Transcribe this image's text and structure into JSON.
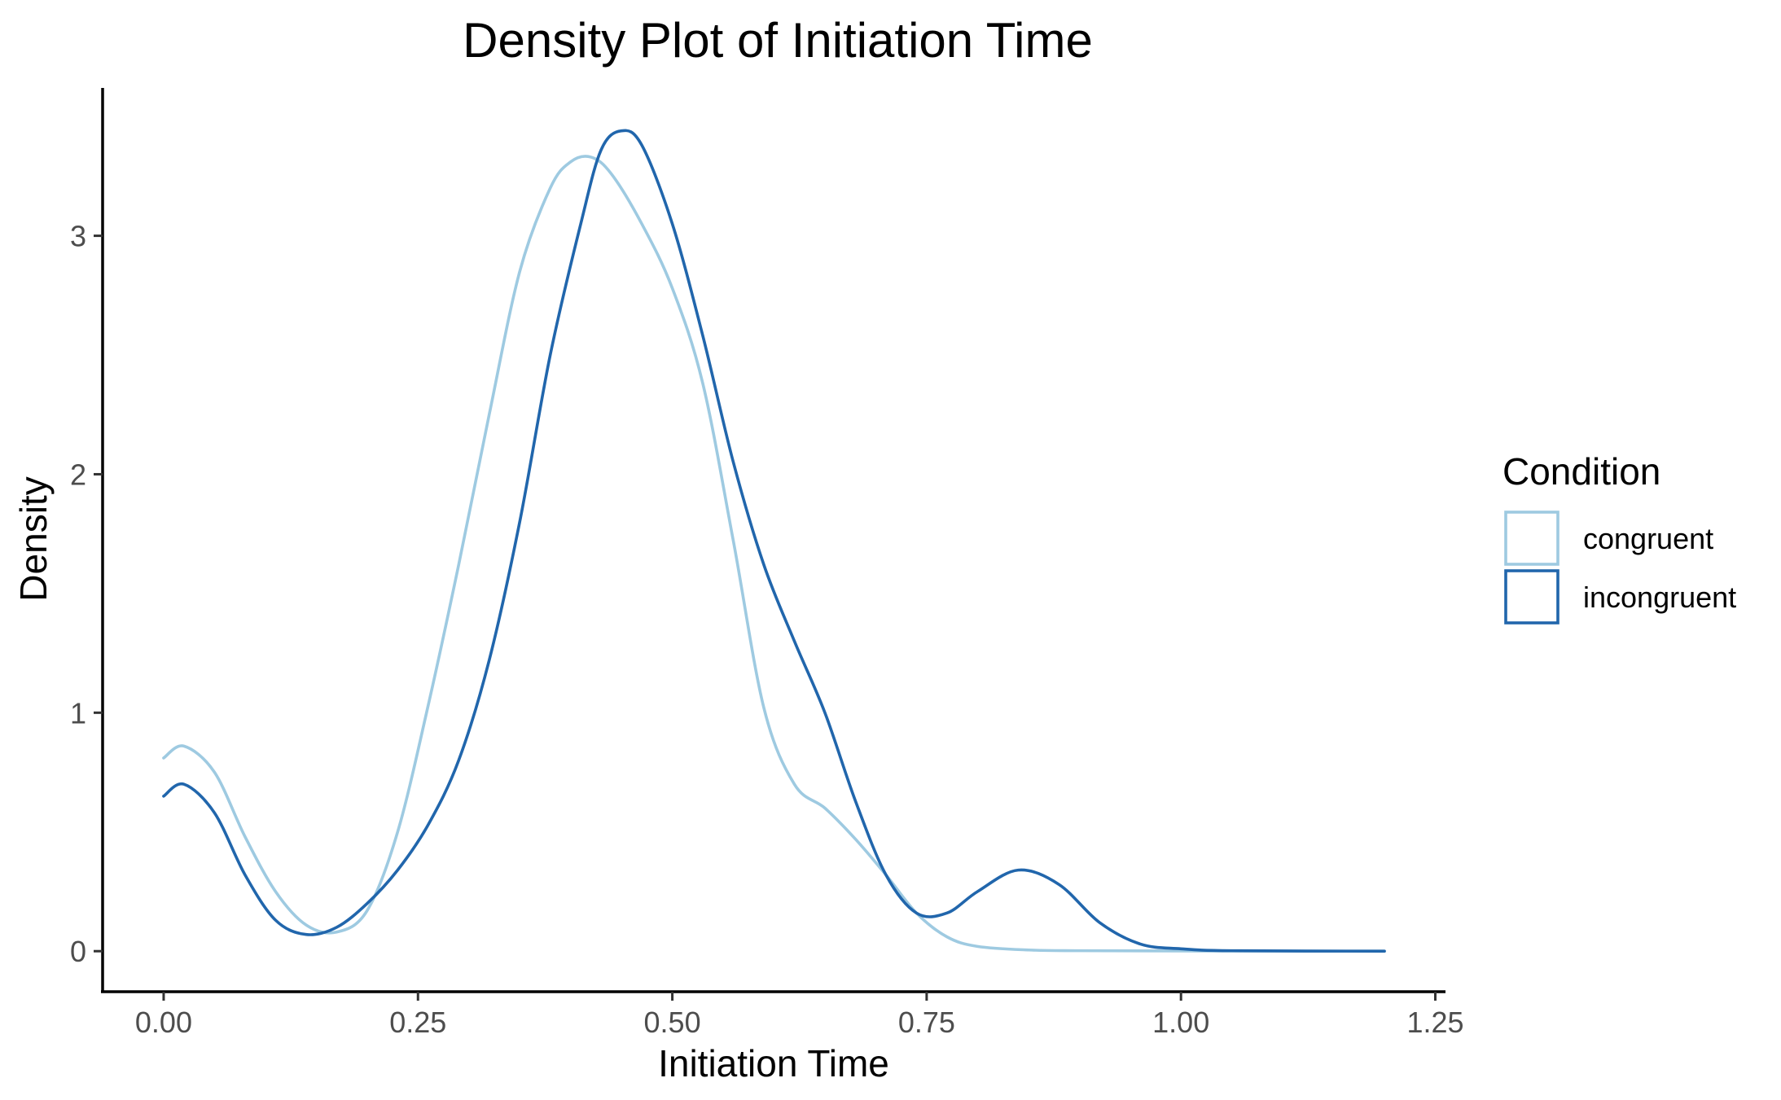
{
  "chart_data": {
    "type": "line",
    "title": "Density Plot of Initiation Time",
    "xlabel": "Initiation Time",
    "ylabel": "Density",
    "xlim": [
      -0.06,
      1.26
    ],
    "ylim": [
      -0.17,
      3.62
    ],
    "x_ticks": [
      "0.00",
      "0.25",
      "0.50",
      "0.75",
      "1.00",
      "1.25"
    ],
    "y_ticks": [
      "0",
      "1",
      "2",
      "3"
    ],
    "grid": false,
    "legend": {
      "title": "Condition",
      "position": "right",
      "entries": [
        "congruent",
        "incongruent"
      ]
    },
    "colors": {
      "congruent": "#9ecae1",
      "incongruent": "#2166ac"
    },
    "series": [
      {
        "name": "congruent",
        "color": "#9ecae1",
        "x": [
          0.0,
          0.02,
          0.05,
          0.08,
          0.11,
          0.14,
          0.17,
          0.2,
          0.23,
          0.26,
          0.29,
          0.32,
          0.35,
          0.38,
          0.4,
          0.42,
          0.44,
          0.47,
          0.5,
          0.53,
          0.56,
          0.59,
          0.62,
          0.65,
          0.68,
          0.71,
          0.74,
          0.77,
          0.8,
          0.85,
          0.9,
          1.0,
          1.2
        ],
        "y": [
          0.81,
          0.86,
          0.75,
          0.48,
          0.25,
          0.11,
          0.08,
          0.17,
          0.5,
          1.03,
          1.62,
          2.25,
          2.85,
          3.2,
          3.31,
          3.33,
          3.26,
          3.05,
          2.78,
          2.38,
          1.72,
          1.02,
          0.7,
          0.6,
          0.47,
          0.32,
          0.16,
          0.06,
          0.02,
          0.005,
          0.002,
          0.001,
          0.0
        ]
      },
      {
        "name": "incongruent",
        "color": "#2166ac",
        "x": [
          0.0,
          0.02,
          0.05,
          0.08,
          0.11,
          0.14,
          0.17,
          0.2,
          0.23,
          0.26,
          0.29,
          0.32,
          0.35,
          0.38,
          0.41,
          0.43,
          0.45,
          0.47,
          0.5,
          0.53,
          0.56,
          0.59,
          0.62,
          0.65,
          0.68,
          0.71,
          0.74,
          0.77,
          0.8,
          0.84,
          0.88,
          0.92,
          0.96,
          1.0,
          1.05,
          1.2
        ],
        "y": [
          0.65,
          0.7,
          0.58,
          0.32,
          0.13,
          0.07,
          0.1,
          0.2,
          0.34,
          0.53,
          0.8,
          1.22,
          1.8,
          2.5,
          3.05,
          3.36,
          3.44,
          3.38,
          3.05,
          2.58,
          2.05,
          1.62,
          1.3,
          1.0,
          0.63,
          0.32,
          0.16,
          0.16,
          0.25,
          0.34,
          0.28,
          0.12,
          0.03,
          0.01,
          0.002,
          0.0
        ]
      }
    ]
  }
}
